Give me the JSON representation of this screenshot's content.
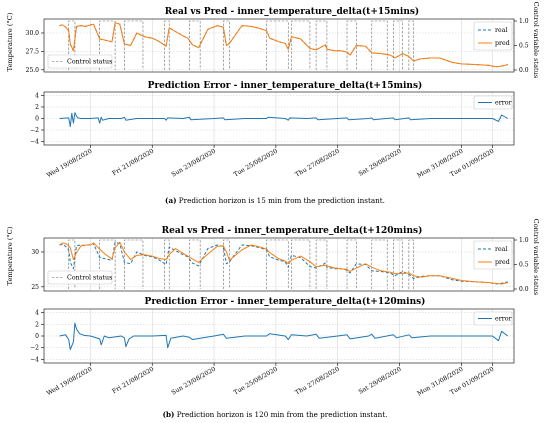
{
  "colors": {
    "real": "#1f77b4",
    "pred": "#ff7f0e",
    "error": "#1f77b4",
    "control": "#6e6e6e"
  },
  "dates": [
    "Wed 19/08/2020",
    "Fri 21/08/2020",
    "Sun 23/08/2020",
    "Tue 25/08/2020",
    "Thu 27/08/2020",
    "Sat 29/08/2020",
    "Mon 31/08/2020",
    "Tue 01/09/2020"
  ],
  "captions": [
    {
      "tag": "(a)",
      "text": " Prediction horizon is 15 min from the prediction instant."
    },
    {
      "tag": "(b)",
      "text": " Prediction horizon is 120 min from the prediction instant."
    }
  ],
  "chart_data": [
    {
      "type": "line",
      "title": "Real vs Pred - inner_temperature_delta(t+15mins)",
      "ylabel": "Temperature (°C)",
      "ylabel_right": "Control variable status",
      "ylim": [
        24.7,
        31.9
      ],
      "yticks": [
        "30.0",
        "27.5",
        "25.0"
      ],
      "ytick_values": [
        30.0,
        27.5,
        25.0
      ],
      "y2ticks": [
        "1.0",
        "0.5",
        "0.0"
      ],
      "y2tick_values": [
        1.0,
        0.5,
        0.0
      ],
      "xlim_days": [
        17.5,
        32.7
      ],
      "legend": [
        "real",
        "pred"
      ],
      "legend_control": "Control status",
      "x": [
        18.0,
        18.1,
        18.2,
        18.3,
        18.35,
        18.45,
        18.55,
        18.7,
        18.85,
        19.0,
        19.1,
        19.3,
        19.5,
        19.7,
        19.8,
        19.95,
        20.1,
        20.3,
        20.5,
        20.75,
        21.0,
        21.2,
        21.45,
        21.55,
        21.75,
        22.0,
        22.15,
        22.3,
        22.5,
        22.8,
        23.1,
        23.3,
        23.4,
        23.5,
        23.9,
        24.2,
        24.5,
        24.7,
        24.8,
        25.1,
        25.3,
        25.4,
        25.5,
        25.8,
        26.1,
        26.3,
        26.6,
        26.65,
        26.9,
        27.1,
        27.3,
        27.4,
        27.6,
        27.9,
        28.1,
        28.4,
        28.7,
        28.85,
        29.1,
        29.3,
        29.45,
        29.7,
        30.0,
        30.3,
        30.7,
        31.0,
        31.5,
        31.9,
        32.1,
        32.3,
        32.5
      ],
      "series": [
        {
          "name": "real",
          "values": [
            31.0,
            31.1,
            30.8,
            30.3,
            28.5,
            27.6,
            30.9,
            31.0,
            30.9,
            31.1,
            31.2,
            29.2,
            29.0,
            28.8,
            31.4,
            31.2,
            28.5,
            28.3,
            30.0,
            29.5,
            29.3,
            28.9,
            28.2,
            30.7,
            30.2,
            29.6,
            29.3,
            28.4,
            28.0,
            30.5,
            31.0,
            30.8,
            28.3,
            28.6,
            31.0,
            30.9,
            30.6,
            30.3,
            29.3,
            28.8,
            28.6,
            27.8,
            29.5,
            29.2,
            27.9,
            27.7,
            28.4,
            27.8,
            27.6,
            27.6,
            27.4,
            27.0,
            28.3,
            28.2,
            27.3,
            27.2,
            27.0,
            26.6,
            27.2,
            26.8,
            26.2,
            26.5,
            26.6,
            26.6,
            26.0,
            25.8,
            25.7,
            25.6,
            25.4,
            25.5,
            25.7
          ]
        },
        {
          "name": "pred",
          "values": [
            31.0,
            31.1,
            30.8,
            30.3,
            28.5,
            27.6,
            30.9,
            31.0,
            30.9,
            31.1,
            31.2,
            29.2,
            29.0,
            28.8,
            31.4,
            31.2,
            28.5,
            28.3,
            30.0,
            29.5,
            29.3,
            28.9,
            28.2,
            30.7,
            30.2,
            29.6,
            29.3,
            28.4,
            28.0,
            30.5,
            31.0,
            30.8,
            28.3,
            28.6,
            31.0,
            30.9,
            30.6,
            30.3,
            29.3,
            28.8,
            28.6,
            27.8,
            29.5,
            29.2,
            27.9,
            27.7,
            28.4,
            27.8,
            27.6,
            27.6,
            27.4,
            27.0,
            28.3,
            28.2,
            27.3,
            27.2,
            27.0,
            26.6,
            27.2,
            26.8,
            26.2,
            26.5,
            26.6,
            26.6,
            26.0,
            25.8,
            25.7,
            25.6,
            25.4,
            25.5,
            25.7
          ]
        }
      ],
      "control_intervals": [
        [
          18.3,
          18.5
        ],
        [
          19.3,
          19.8
        ],
        [
          20.1,
          20.7
        ],
        [
          21.4,
          21.55
        ],
        [
          22.2,
          22.55
        ],
        [
          23.3,
          23.5
        ],
        [
          24.7,
          25.4
        ],
        [
          25.5,
          26.1
        ],
        [
          26.3,
          26.65
        ],
        [
          27.3,
          27.6
        ],
        [
          28.1,
          28.6
        ],
        [
          28.8,
          29.1
        ],
        [
          29.3,
          29.45
        ]
      ]
    },
    {
      "type": "line",
      "title": "Prediction Error - inner_temperature_delta(t+15mins)",
      "ylim": [
        -4.6,
        4.6
      ],
      "yticks": [
        "4",
        "2",
        "0",
        "−2",
        "−4"
      ],
      "ytick_values": [
        4,
        2,
        0,
        -2,
        -4
      ],
      "legend": [
        "error"
      ],
      "x": [
        18.0,
        18.3,
        18.35,
        18.4,
        18.45,
        18.5,
        18.55,
        18.6,
        18.7,
        19.0,
        19.25,
        19.3,
        19.35,
        19.4,
        19.6,
        20.0,
        20.1,
        20.15,
        20.5,
        21.0,
        21.4,
        21.45,
        21.5,
        22.0,
        22.2,
        22.25,
        23.0,
        23.3,
        23.35,
        24.0,
        24.7,
        24.75,
        25.3,
        25.4,
        25.45,
        26.0,
        26.3,
        26.35,
        27.0,
        27.3,
        27.35,
        28.0,
        28.1,
        28.15,
        28.8,
        28.85,
        29.3,
        29.35,
        30.0,
        31.0,
        32.0,
        32.2,
        32.3,
        32.5
      ],
      "series": [
        {
          "name": "error",
          "values": [
            0.0,
            0.1,
            -1.4,
            0.9,
            -0.8,
            1.0,
            0.4,
            0.1,
            0.0,
            0.0,
            0.1,
            -0.8,
            0.2,
            -0.3,
            0.0,
            0.0,
            0.2,
            -0.3,
            0.0,
            0.0,
            0.0,
            -0.3,
            0.1,
            0.0,
            0.2,
            -0.2,
            0.0,
            0.1,
            -0.2,
            0.0,
            0.0,
            0.2,
            0.0,
            -0.3,
            0.1,
            0.0,
            0.1,
            -0.2,
            0.0,
            0.1,
            -0.2,
            0.0,
            0.1,
            -0.2,
            0.1,
            -0.2,
            0.1,
            -0.2,
            0.0,
            0.0,
            0.0,
            -0.5,
            0.6,
            0.0
          ]
        }
      ]
    },
    {
      "type": "line",
      "title": "Real vs Pred - inner_temperature_delta(t+120mins)",
      "ylabel": "Temperature (°C)",
      "ylabel_right": "Control variable status",
      "ylim": [
        24.4,
        32.0
      ],
      "yticks": [
        "30",
        "25"
      ],
      "ytick_values": [
        30,
        25
      ],
      "y2ticks": [
        "1.0",
        "0.5",
        "0.0"
      ],
      "y2tick_values": [
        1.0,
        0.5,
        0.0
      ],
      "xlim_days": [
        17.5,
        32.7
      ],
      "legend": [
        "real",
        "pred"
      ],
      "legend_control": "Control status",
      "x": [
        18.0,
        18.1,
        18.2,
        18.3,
        18.35,
        18.45,
        18.55,
        18.7,
        18.85,
        19.0,
        19.1,
        19.3,
        19.5,
        19.7,
        19.8,
        19.95,
        20.1,
        20.3,
        20.5,
        20.75,
        21.0,
        21.2,
        21.45,
        21.55,
        21.75,
        22.0,
        22.15,
        22.3,
        22.5,
        22.8,
        23.1,
        23.3,
        23.4,
        23.5,
        23.9,
        24.2,
        24.5,
        24.7,
        24.8,
        25.1,
        25.3,
        25.4,
        25.5,
        25.8,
        26.1,
        26.3,
        26.6,
        26.65,
        26.9,
        27.1,
        27.3,
        27.4,
        27.6,
        27.9,
        28.1,
        28.4,
        28.7,
        28.85,
        29.1,
        29.3,
        29.45,
        29.7,
        30.0,
        30.3,
        30.7,
        31.0,
        31.5,
        31.9,
        32.1,
        32.3,
        32.5
      ],
      "series": [
        {
          "name": "real",
          "values": [
            31.0,
            31.1,
            30.8,
            30.3,
            28.5,
            27.6,
            30.9,
            31.0,
            30.9,
            31.1,
            31.2,
            29.2,
            29.0,
            28.8,
            31.4,
            31.2,
            28.5,
            28.3,
            30.0,
            29.5,
            29.3,
            28.9,
            28.2,
            30.7,
            30.2,
            29.6,
            29.3,
            28.4,
            28.0,
            30.5,
            31.0,
            30.8,
            28.3,
            28.6,
            31.0,
            30.9,
            30.6,
            30.3,
            29.3,
            28.8,
            28.6,
            27.8,
            29.5,
            29.2,
            27.9,
            27.7,
            28.4,
            27.8,
            27.6,
            27.6,
            27.4,
            27.0,
            28.3,
            28.2,
            27.3,
            27.2,
            27.0,
            26.6,
            27.2,
            26.8,
            26.2,
            26.5,
            26.6,
            26.6,
            26.0,
            25.8,
            25.7,
            25.6,
            25.4,
            25.5,
            25.7
          ]
        },
        {
          "name": "pred",
          "values": [
            31.0,
            31.3,
            31.2,
            30.9,
            30.6,
            28.9,
            29.9,
            30.9,
            31.0,
            31.0,
            31.3,
            30.4,
            29.6,
            29.0,
            30.6,
            31.4,
            30.0,
            28.9,
            29.5,
            29.6,
            29.4,
            29.1,
            28.9,
            29.6,
            30.5,
            29.8,
            29.4,
            29.0,
            28.5,
            29.7,
            30.8,
            30.9,
            30.0,
            28.8,
            30.3,
            31.0,
            30.7,
            30.4,
            29.9,
            29.0,
            28.7,
            28.3,
            28.8,
            29.4,
            28.6,
            27.9,
            28.1,
            28.0,
            27.7,
            27.6,
            27.5,
            27.2,
            27.7,
            28.3,
            27.8,
            27.3,
            27.1,
            26.9,
            26.9,
            27.0,
            26.6,
            26.4,
            26.6,
            26.6,
            26.2,
            25.9,
            25.7,
            25.6,
            25.5,
            25.4,
            25.6
          ]
        }
      ],
      "control_intervals": [
        [
          18.3,
          18.5
        ],
        [
          19.3,
          19.8
        ],
        [
          20.1,
          20.7
        ],
        [
          21.4,
          21.55
        ],
        [
          22.2,
          22.55
        ],
        [
          23.3,
          23.5
        ],
        [
          24.7,
          25.4
        ],
        [
          25.5,
          26.1
        ],
        [
          26.3,
          26.65
        ],
        [
          27.3,
          27.6
        ],
        [
          28.1,
          28.6
        ],
        [
          28.8,
          29.1
        ],
        [
          29.3,
          29.45
        ]
      ]
    },
    {
      "type": "line",
      "title": "Prediction Error - inner_temperature_delta(t+120mins)",
      "ylim": [
        -4.6,
        4.6
      ],
      "yticks": [
        "4",
        "2",
        "0",
        "−2",
        "−4"
      ],
      "ytick_values": [
        4,
        2,
        0,
        -2,
        -4
      ],
      "legend": [
        "error"
      ],
      "x": [
        18.0,
        18.2,
        18.3,
        18.35,
        18.45,
        18.5,
        18.55,
        18.65,
        18.8,
        19.0,
        19.3,
        19.35,
        19.45,
        19.6,
        20.0,
        20.1,
        20.15,
        20.25,
        20.4,
        21.0,
        21.45,
        21.5,
        21.6,
        22.0,
        22.2,
        22.3,
        23.0,
        23.3,
        23.4,
        24.0,
        24.7,
        24.8,
        25.3,
        25.4,
        25.5,
        26.0,
        26.3,
        26.4,
        27.0,
        27.3,
        27.4,
        28.0,
        28.1,
        28.2,
        28.8,
        28.9,
        29.3,
        29.4,
        30.0,
        31.0,
        32.0,
        32.2,
        32.3,
        32.5
      ],
      "series": [
        {
          "name": "error",
          "values": [
            0.0,
            0.2,
            -0.6,
            -2.3,
            -1.0,
            2.2,
            1.2,
            0.4,
            0.1,
            0.0,
            -0.5,
            -1.5,
            0.0,
            -0.3,
            0.0,
            -0.3,
            -1.8,
            -0.5,
            0.0,
            0.0,
            0.1,
            -2.0,
            -0.4,
            0.0,
            -0.2,
            -0.6,
            0.0,
            0.3,
            -0.4,
            0.0,
            0.0,
            0.4,
            0.0,
            -0.6,
            0.2,
            0.0,
            0.3,
            -0.4,
            0.0,
            0.2,
            -0.5,
            0.0,
            0.3,
            -0.4,
            0.2,
            -0.3,
            0.2,
            -0.3,
            0.0,
            0.0,
            0.0,
            -0.8,
            0.8,
            0.0
          ]
        }
      ]
    }
  ]
}
